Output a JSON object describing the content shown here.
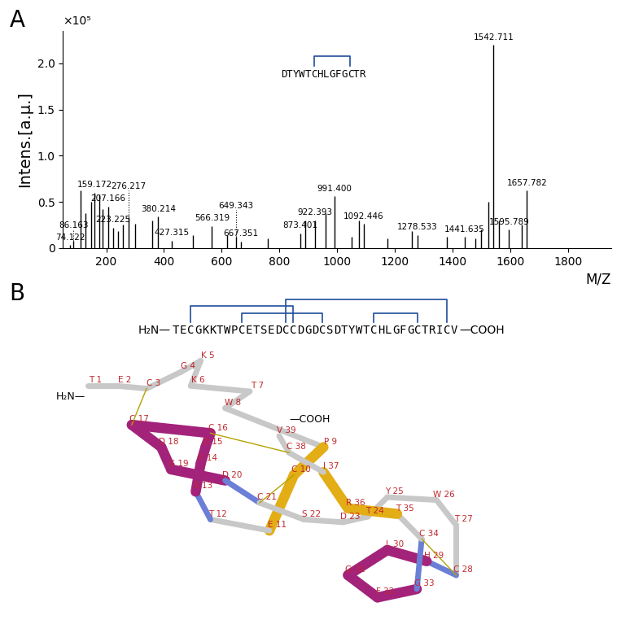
{
  "chart_data": {
    "type": "stem",
    "panel_label": "A",
    "x_label": "M/Z",
    "y_label": "Intens.[a.μ.]",
    "y_multiplier": "×10⁵",
    "color": "#000000",
    "xlim": [
      50,
      1950
    ],
    "ylim": [
      0,
      2.35
    ],
    "xticks": [
      200,
      400,
      600,
      800,
      1000,
      1200,
      1400,
      1600,
      1800
    ],
    "yticks": [
      0,
      0.5,
      {
        "value": 1,
        "label": "1.0"
      },
      1.5,
      {
        "value": 2,
        "label": "2.0"
      }
    ],
    "x": [
      74.122,
      86.163,
      110,
      129,
      147,
      159.172,
      175,
      187,
      207.166,
      223.225,
      240,
      258,
      276.217,
      300,
      360,
      380.214,
      427.315,
      500,
      566.319,
      620,
      649.343,
      667.351,
      760,
      873.401,
      890,
      922.393,
      960,
      991.4,
      1050,
      1075,
      1092.446,
      1175,
      1260,
      1278.533,
      1380,
      1441.635,
      1480,
      1500,
      1525,
      1542.711,
      1560,
      1595.789,
      1640,
      1657.782
    ],
    "values": [
      0.03,
      0.08,
      0.62,
      0.38,
      0.5,
      0.6,
      0.58,
      0.42,
      0.45,
      0.22,
      0.18,
      0.25,
      0.33,
      0.26,
      0.3,
      0.34,
      0.08,
      0.14,
      0.24,
      0.14,
      0.12,
      0.07,
      0.1,
      0.16,
      0.3,
      0.3,
      0.38,
      0.56,
      0.12,
      0.3,
      0.26,
      0.1,
      0.18,
      0.14,
      0.12,
      0.12,
      0.1,
      0.2,
      0.5,
      2.2,
      0.3,
      0.2,
      0.25,
      0.62
    ],
    "peak_labels": [
      "74.122",
      "86.163",
      null,
      null,
      null,
      "159.172",
      null,
      null,
      "207.166",
      "223.225",
      null,
      null,
      "276.217",
      null,
      null,
      "380.214",
      "427.315",
      null,
      "566.319",
      null,
      "649.343",
      "667.351",
      null,
      "873.401",
      null,
      "922.393",
      null,
      "991.400",
      null,
      null,
      "1092.446",
      null,
      null,
      "1278.533",
      null,
      "1441.635",
      null,
      null,
      null,
      "1542.711",
      null,
      "1595.789",
      null,
      "1657.782"
    ],
    "inset": {
      "sequence": "DTYWTCHLGFGCTR",
      "disulfide_bonds": [
        [
          6,
          12
        ]
      ]
    }
  },
  "diagram": {
    "panel_label": "B",
    "n_term": "H₂N—",
    "c_term": "—COOH",
    "sequence": "TECGKKTWPCETSEDCCDGDCSDTYWTCHLGFGCTRICV",
    "disulfide_bonds": [
      [
        3,
        17
      ],
      [
        10,
        21
      ],
      [
        16,
        38
      ],
      [
        28,
        34
      ]
    ],
    "residue_labels": [
      "T 1",
      "E 2",
      "C 3",
      "G 4",
      "K 5",
      "K 6",
      "T 7",
      "W 8",
      "P 9",
      "C 10",
      "E 11",
      "T 12",
      "S 13",
      "E 14",
      "D 15",
      "C 16",
      "C 17",
      "D 18",
      "G 19",
      "D 20",
      "C 21",
      "S 22",
      "D 23",
      "T 24",
      "Y 25",
      "W 26",
      "T 27",
      "C 28",
      "H 29",
      "L 30",
      "G 31",
      "F 32",
      "G 33",
      "C 34",
      "T 35",
      "R 36",
      "I 37",
      "C 38",
      "V 39"
    ]
  }
}
